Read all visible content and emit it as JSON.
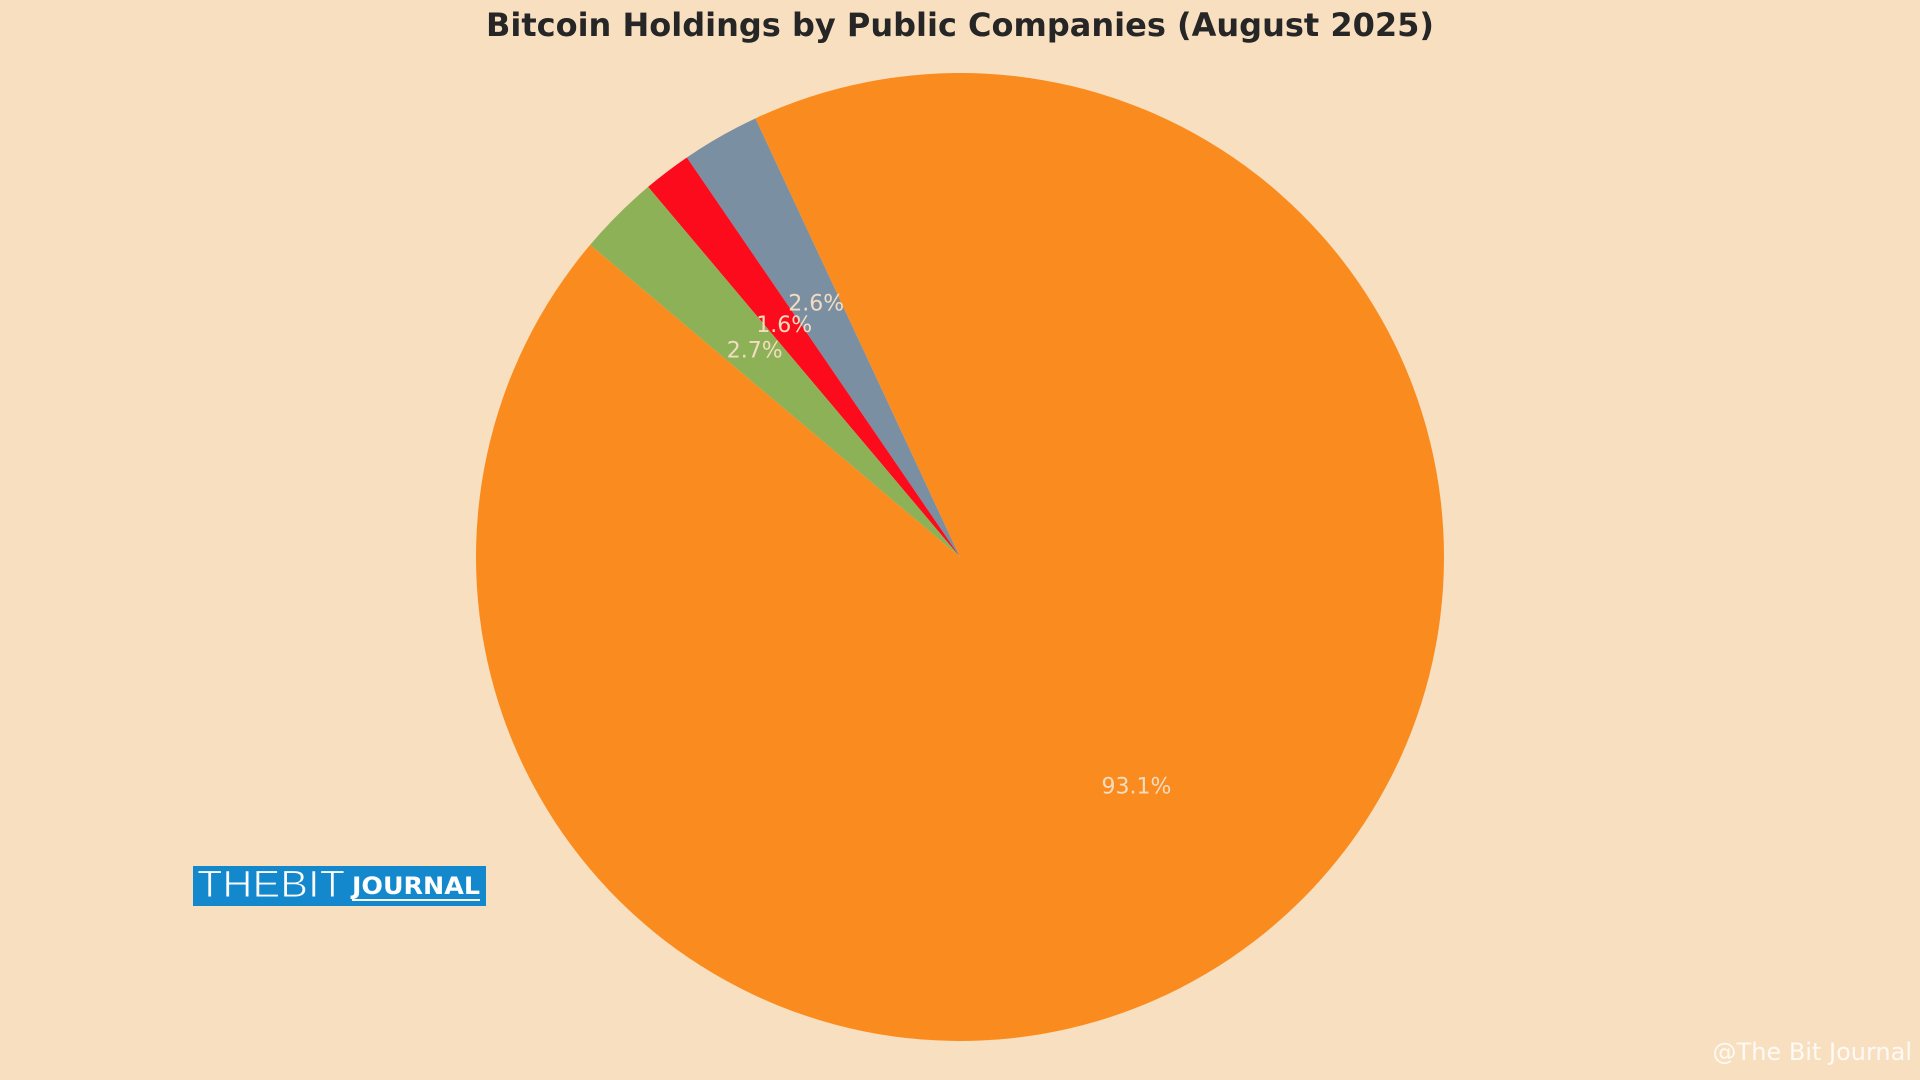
{
  "chart_data": {
    "type": "pie",
    "title": "Bitcoin Holdings by Public Companies (August 2025)",
    "categories": [
      null,
      null,
      null,
      null
    ],
    "values": [
      2.6,
      1.6,
      2.7,
      93.1
    ],
    "value_labels": [
      "2.6%",
      "1.6%",
      "2.7%",
      "93.1%"
    ],
    "colors": [
      "#7b8fa2",
      "#fb0b1c",
      "#8db157",
      "#fa8c1f"
    ]
  },
  "overlay": {
    "logo_left": "THEBIT",
    "logo_right": "JOURNAL",
    "credit": "@The Bit Journal"
  }
}
